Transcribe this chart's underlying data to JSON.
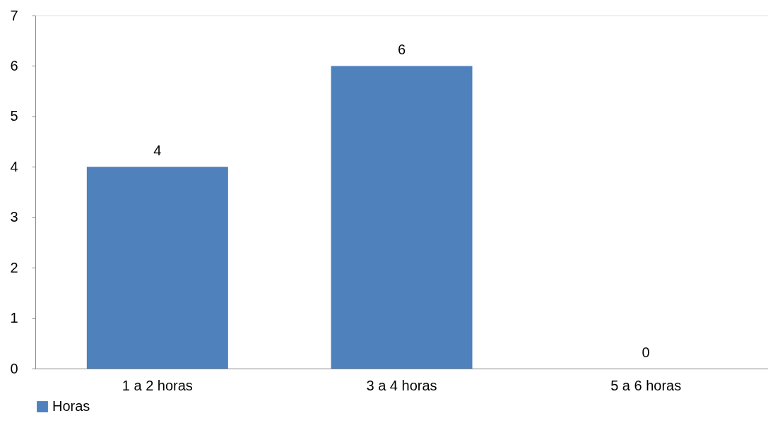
{
  "chart_data": {
    "type": "bar",
    "categories": [
      "1 a 2 horas",
      "3 a 4 horas",
      "5 a 6 horas"
    ],
    "series": [
      {
        "name": "Horas",
        "color": "#4f81bd",
        "values": [
          4,
          6,
          0
        ]
      }
    ],
    "ylim": [
      0,
      7
    ],
    "yticks": [
      0,
      1,
      2,
      3,
      4,
      5,
      6,
      7
    ],
    "grid": false,
    "legend": "bottom",
    "data_labels": true
  }
}
